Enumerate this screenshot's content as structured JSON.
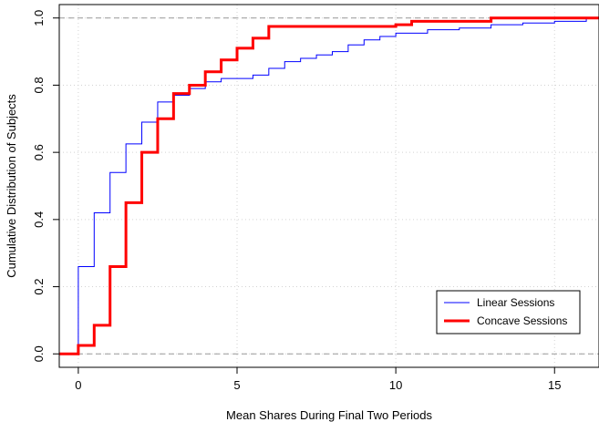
{
  "chart_data": {
    "type": "line",
    "subtype": "step-ecdf",
    "xlabel": "Mean Shares During Final Two Periods",
    "ylabel": "Cumulative Distribution of Subjects",
    "xlim": [
      -0.6,
      16.4
    ],
    "ylim": [
      -0.04,
      1.04
    ],
    "x_ticks": [
      0,
      5,
      10,
      15
    ],
    "y_ticks": [
      0.0,
      0.2,
      0.4,
      0.6,
      0.8,
      1.0
    ],
    "x_tick_labels": [
      "0",
      "5",
      "10",
      "15"
    ],
    "y_tick_labels": [
      "0.0",
      "0.2",
      "0.4",
      "0.6",
      "0.8",
      "1.0"
    ],
    "grid": true,
    "reference_lines": [
      0,
      1
    ],
    "legend_position": "bottom-right",
    "series": [
      {
        "name": "Linear Sessions",
        "color": "#0000ff",
        "line_width": 1,
        "points": [
          [
            -0.6,
            0.0
          ],
          [
            0.0,
            0.26
          ],
          [
            0.5,
            0.42
          ],
          [
            1.0,
            0.54
          ],
          [
            1.5,
            0.625
          ],
          [
            2.0,
            0.69
          ],
          [
            2.5,
            0.75
          ],
          [
            3.0,
            0.77
          ],
          [
            3.5,
            0.79
          ],
          [
            4.0,
            0.81
          ],
          [
            4.5,
            0.82
          ],
          [
            5.5,
            0.83
          ],
          [
            6.0,
            0.85
          ],
          [
            6.5,
            0.87
          ],
          [
            7.0,
            0.88
          ],
          [
            7.5,
            0.89
          ],
          [
            8.0,
            0.9
          ],
          [
            8.5,
            0.92
          ],
          [
            9.0,
            0.935
          ],
          [
            9.5,
            0.945
          ],
          [
            10.0,
            0.955
          ],
          [
            11.0,
            0.965
          ],
          [
            12.0,
            0.97
          ],
          [
            13.0,
            0.98
          ],
          [
            14.0,
            0.985
          ],
          [
            15.0,
            0.99
          ],
          [
            16.0,
            1.0
          ]
        ]
      },
      {
        "name": "Concave Sessions",
        "color": "#ff0000",
        "line_width": 3,
        "points": [
          [
            -0.6,
            0.0
          ],
          [
            0.0,
            0.025
          ],
          [
            0.5,
            0.085
          ],
          [
            1.0,
            0.26
          ],
          [
            1.5,
            0.45
          ],
          [
            2.0,
            0.6
          ],
          [
            2.5,
            0.7
          ],
          [
            3.0,
            0.775
          ],
          [
            3.5,
            0.8
          ],
          [
            4.0,
            0.84
          ],
          [
            4.5,
            0.875
          ],
          [
            5.0,
            0.91
          ],
          [
            5.5,
            0.94
          ],
          [
            6.0,
            0.975
          ],
          [
            10.0,
            0.98
          ],
          [
            10.5,
            0.99
          ],
          [
            13.0,
            1.0
          ]
        ]
      }
    ]
  }
}
